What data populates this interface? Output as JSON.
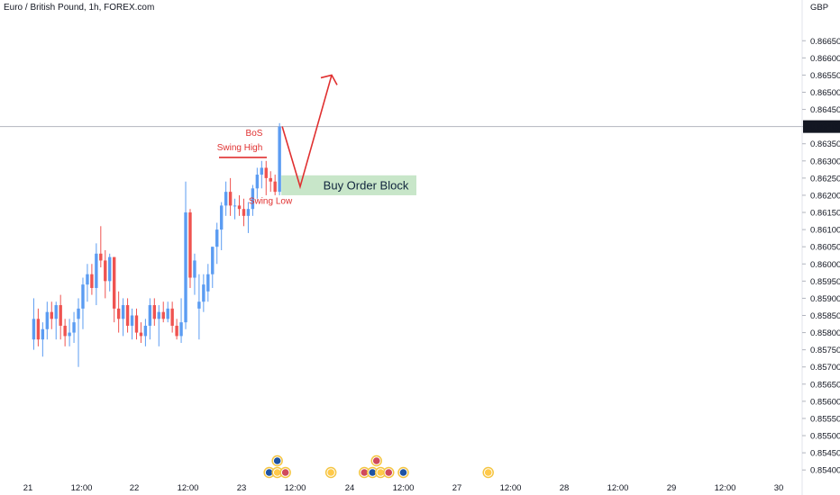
{
  "header": {
    "title": "Euro / British Pound, 1h, FOREX.com"
  },
  "chart_data": {
    "type": "candlestick",
    "currency": "GBP",
    "ylim": [
      0.8539,
      0.8669
    ],
    "price_ticks": [
      "0.86650",
      "0.86600",
      "0.86550",
      "0.86500",
      "0.86450",
      "0.86400",
      "0.86350",
      "0.86300",
      "0.86250",
      "0.86200",
      "0.86150",
      "0.86100",
      "0.86050",
      "0.86000",
      "0.85950",
      "0.85900",
      "0.85850",
      "0.85800",
      "0.85750",
      "0.85700",
      "0.85650",
      "0.85600",
      "0.85550",
      "0.85500",
      "0.85450",
      "0.85400"
    ],
    "current_price": "0.86400",
    "time_ticks": [
      "21",
      "12:00",
      "22",
      "12:00",
      "23",
      "12:00",
      "24",
      "12:00",
      "27",
      "12:00",
      "28",
      "12:00",
      "29",
      "12:00",
      "30"
    ],
    "colors": {
      "up": "#5b9cf2",
      "down": "#ef5350",
      "annotation": "#e03030",
      "order_block": "#c8e6c9"
    },
    "candles": [
      {
        "o": 0.8578,
        "h": 0.859,
        "l": 0.8575,
        "c": 0.8584
      },
      {
        "o": 0.8584,
        "h": 0.8587,
        "l": 0.8576,
        "c": 0.8578
      },
      {
        "o": 0.8578,
        "h": 0.8583,
        "l": 0.8573,
        "c": 0.8581
      },
      {
        "o": 0.8581,
        "h": 0.8589,
        "l": 0.8578,
        "c": 0.8586
      },
      {
        "o": 0.8586,
        "h": 0.8589,
        "l": 0.8581,
        "c": 0.8584
      },
      {
        "o": 0.8584,
        "h": 0.8589,
        "l": 0.8578,
        "c": 0.8588
      },
      {
        "o": 0.8588,
        "h": 0.8591,
        "l": 0.8578,
        "c": 0.8582
      },
      {
        "o": 0.8582,
        "h": 0.8584,
        "l": 0.8576,
        "c": 0.8579
      },
      {
        "o": 0.8579,
        "h": 0.8584,
        "l": 0.8576,
        "c": 0.858
      },
      {
        "o": 0.858,
        "h": 0.8586,
        "l": 0.8577,
        "c": 0.8583
      },
      {
        "o": 0.8584,
        "h": 0.859,
        "l": 0.857,
        "c": 0.8587
      },
      {
        "o": 0.8587,
        "h": 0.8596,
        "l": 0.8581,
        "c": 0.8594
      },
      {
        "o": 0.8594,
        "h": 0.86,
        "l": 0.8589,
        "c": 0.8597
      },
      {
        "o": 0.8597,
        "h": 0.86,
        "l": 0.8591,
        "c": 0.8593
      },
      {
        "o": 0.8593,
        "h": 0.8606,
        "l": 0.8588,
        "c": 0.8603
      },
      {
        "o": 0.8603,
        "h": 0.8611,
        "l": 0.8599,
        "c": 0.8601
      },
      {
        "o": 0.8601,
        "h": 0.8604,
        "l": 0.859,
        "c": 0.8595
      },
      {
        "o": 0.8595,
        "h": 0.8603,
        "l": 0.8592,
        "c": 0.8602
      },
      {
        "o": 0.8602,
        "h": 0.8602,
        "l": 0.8583,
        "c": 0.8587
      },
      {
        "o": 0.8587,
        "h": 0.8592,
        "l": 0.858,
        "c": 0.8584
      },
      {
        "o": 0.8584,
        "h": 0.859,
        "l": 0.8579,
        "c": 0.8588
      },
      {
        "o": 0.8588,
        "h": 0.859,
        "l": 0.858,
        "c": 0.8582
      },
      {
        "o": 0.8582,
        "h": 0.8587,
        "l": 0.8578,
        "c": 0.8585
      },
      {
        "o": 0.8585,
        "h": 0.8587,
        "l": 0.8578,
        "c": 0.858
      },
      {
        "o": 0.858,
        "h": 0.8583,
        "l": 0.8577,
        "c": 0.8579
      },
      {
        "o": 0.8579,
        "h": 0.8584,
        "l": 0.8576,
        "c": 0.8582
      },
      {
        "o": 0.8582,
        "h": 0.859,
        "l": 0.8578,
        "c": 0.8588
      },
      {
        "o": 0.8588,
        "h": 0.859,
        "l": 0.8582,
        "c": 0.8584
      },
      {
        "o": 0.8584,
        "h": 0.8588,
        "l": 0.8576,
        "c": 0.8586
      },
      {
        "o": 0.8586,
        "h": 0.8589,
        "l": 0.8583,
        "c": 0.8584
      },
      {
        "o": 0.8584,
        "h": 0.8589,
        "l": 0.8583,
        "c": 0.8587
      },
      {
        "o": 0.8587,
        "h": 0.8589,
        "l": 0.858,
        "c": 0.8582
      },
      {
        "o": 0.8582,
        "h": 0.8584,
        "l": 0.8578,
        "c": 0.8579
      },
      {
        "o": 0.8579,
        "h": 0.859,
        "l": 0.8577,
        "c": 0.8583
      },
      {
        "o": 0.8583,
        "h": 0.8624,
        "l": 0.8581,
        "c": 0.8615
      },
      {
        "o": 0.8615,
        "h": 0.8616,
        "l": 0.8593,
        "c": 0.8596
      },
      {
        "o": 0.8596,
        "h": 0.8603,
        "l": 0.8591,
        "c": 0.8601
      },
      {
        "o": 0.8587,
        "h": 0.8597,
        "l": 0.8578,
        "c": 0.8589
      },
      {
        "o": 0.8589,
        "h": 0.8597,
        "l": 0.8586,
        "c": 0.8594
      },
      {
        "o": 0.8592,
        "h": 0.86,
        "l": 0.8589,
        "c": 0.8597
      },
      {
        "o": 0.8597,
        "h": 0.8605,
        "l": 0.8593,
        "c": 0.8605
      },
      {
        "o": 0.8605,
        "h": 0.8612,
        "l": 0.86,
        "c": 0.861
      },
      {
        "o": 0.861,
        "h": 0.8618,
        "l": 0.8604,
        "c": 0.8617
      },
      {
        "o": 0.8617,
        "h": 0.8624,
        "l": 0.8614,
        "c": 0.8621
      },
      {
        "o": 0.8621,
        "h": 0.8625,
        "l": 0.8614,
        "c": 0.8617
      },
      {
        "o": 0.8617,
        "h": 0.8619,
        "l": 0.8613,
        "c": 0.8617
      },
      {
        "o": 0.8617,
        "h": 0.862,
        "l": 0.8614,
        "c": 0.8616
      },
      {
        "o": 0.8616,
        "h": 0.8619,
        "l": 0.8611,
        "c": 0.8614
      },
      {
        "o": 0.8614,
        "h": 0.8618,
        "l": 0.8609,
        "c": 0.8616
      },
      {
        "o": 0.8616,
        "h": 0.8623,
        "l": 0.8614,
        "c": 0.8622
      },
      {
        "o": 0.8622,
        "h": 0.8628,
        "l": 0.8619,
        "c": 0.8626
      },
      {
        "o": 0.8626,
        "h": 0.863,
        "l": 0.8622,
        "c": 0.8628
      },
      {
        "o": 0.8628,
        "h": 0.863,
        "l": 0.862,
        "c": 0.8625
      },
      {
        "o": 0.8625,
        "h": 0.8627,
        "l": 0.8621,
        "c": 0.8624
      },
      {
        "o": 0.8624,
        "h": 0.8626,
        "l": 0.862,
        "c": 0.8621
      },
      {
        "o": 0.8621,
        "h": 0.8641,
        "l": 0.862,
        "c": 0.864
      }
    ],
    "annotations": {
      "bos": "BoS",
      "swing_high": "Swing High",
      "swing_low": "Swing Low",
      "order_block": "Buy Order Block",
      "swing_high_price": 0.8631,
      "order_block_range": [
        0.862,
        0.86258
      ]
    },
    "projection": [
      0.864,
      0.86225,
      0.8655
    ],
    "events": [
      {
        "time": "23 08:00",
        "count": 3
      },
      {
        "time": "23 20:00",
        "count": 1
      },
      {
        "time": "24 06:00",
        "count": 4
      },
      {
        "time": "24 12:00",
        "count": 1
      },
      {
        "time": "27 07:00",
        "count": 1
      }
    ]
  }
}
